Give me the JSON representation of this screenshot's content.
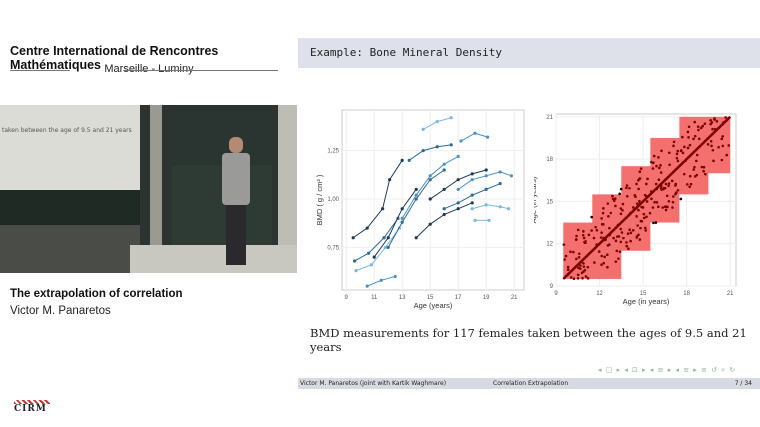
{
  "left_panel": {
    "organization": "Centre International de Rencontres Mathématiques",
    "location": "Marseille - Luminy",
    "talk_title": "The extrapolation of correlation",
    "speaker": "Victor M. Panaretos",
    "logo_text": "CIRM",
    "photo_board_text": "taken between the age of 9.5 and 21 years"
  },
  "slide": {
    "header": "Example: Bone Mineral Density",
    "caption": "BMD measurements for 117 females taken between the ages of 9.5 and 21 years",
    "nav_icons": "◂ □ ▸ ◂ ⊡ ▸ ◂ ≡ ▸ ◂ ≡ ▸ ≡ ↺ ⌕ ↻",
    "footer": {
      "author": "Victor M. Panaretos (joint with Kartik Waghmare)",
      "title": "Correlation Extrapolation",
      "page": "7 / 34"
    }
  },
  "chart_data": [
    {
      "type": "line",
      "xlabel": "Age (years)",
      "ylabel": "BMD ( g / cm² )",
      "xlim": [
        8.7,
        21.7
      ],
      "ylim": [
        0.53,
        1.46
      ],
      "xticks": [
        "9",
        "11",
        "13",
        "15",
        "17",
        "19",
        "21"
      ],
      "yticks": [
        "0,75",
        "1,00",
        "1,25"
      ],
      "grid": true,
      "series": [
        {
          "x": [
            9.5,
            10.5,
            11.6,
            12.1,
            13
          ],
          "y": [
            0.8,
            0.85,
            0.95,
            1.1,
            1.2
          ]
        },
        {
          "x": [
            9.6,
            10.6,
            11.7,
            12.7
          ],
          "y": [
            0.68,
            0.72,
            0.8,
            0.9
          ]
        },
        {
          "x": [
            10.5,
            11.5,
            12.5
          ],
          "y": [
            0.55,
            0.58,
            0.6
          ]
        },
        {
          "x": [
            9.7,
            10.8,
            11.8,
            12.8
          ],
          "y": [
            0.63,
            0.66,
            0.75,
            0.85
          ]
        },
        {
          "x": [
            11,
            12,
            13,
            14
          ],
          "y": [
            0.7,
            0.8,
            0.95,
            1.05
          ]
        },
        {
          "x": [
            12,
            13,
            14,
            15,
            16
          ],
          "y": [
            0.75,
            0.88,
            1.0,
            1.1,
            1.15
          ]
        },
        {
          "x": [
            13,
            14,
            15,
            16,
            17
          ],
          "y": [
            0.9,
            1.02,
            1.12,
            1.18,
            1.22
          ]
        },
        {
          "x": [
            14.5,
            15.5,
            16.5
          ],
          "y": [
            1.36,
            1.4,
            1.42
          ]
        },
        {
          "x": [
            15,
            16,
            17,
            18,
            19
          ],
          "y": [
            1.0,
            1.05,
            1.1,
            1.13,
            1.15
          ]
        },
        {
          "x": [
            16,
            17,
            18,
            19,
            20
          ],
          "y": [
            0.95,
            0.98,
            1.02,
            1.05,
            1.08
          ]
        },
        {
          "x": [
            17,
            18,
            19,
            20,
            20.8
          ],
          "y": [
            1.05,
            1.1,
            1.12,
            1.14,
            1.12
          ]
        },
        {
          "x": [
            18,
            19,
            20,
            20.6
          ],
          "y": [
            0.95,
            0.97,
            0.96,
            0.95
          ]
        },
        {
          "x": [
            14,
            15,
            16,
            17,
            18
          ],
          "y": [
            0.8,
            0.87,
            0.92,
            0.95,
            0.98
          ]
        },
        {
          "x": [
            13.5,
            14.5,
            15.5,
            16.5
          ],
          "y": [
            1.2,
            1.25,
            1.27,
            1.28
          ]
        },
        {
          "x": [
            17.2,
            18.2,
            19.1
          ],
          "y": [
            1.3,
            1.34,
            1.32
          ]
        },
        {
          "x": [
            18.2,
            19.2
          ],
          "y": [
            0.89,
            0.89
          ]
        }
      ],
      "colors": [
        "#1d3a57",
        "#2c6a9a",
        "#4a90c8",
        "#7ab8e4"
      ]
    },
    {
      "type": "scatter",
      "xlabel": "Age (in years)",
      "ylabel": "Age (in years)",
      "xlim": [
        9,
        21.4
      ],
      "ylim": [
        9,
        21.2
      ],
      "xticks": [
        "9",
        "12",
        "15",
        "18",
        "21"
      ],
      "yticks": [
        "9",
        "12",
        "15",
        "18",
        "21"
      ],
      "grid": true,
      "blocks": [
        [
          9.5,
          13.5,
          9.5,
          13.5
        ],
        [
          11.5,
          15.5,
          11.5,
          15.5
        ],
        [
          13.5,
          17.5,
          13.5,
          17.5
        ],
        [
          15.5,
          19.5,
          15.5,
          19.5
        ],
        [
          17.5,
          21,
          17,
          21
        ]
      ],
      "block_color": "#f4706e",
      "point_color": "#7a0000",
      "outside_point_color": "#000000"
    }
  ]
}
